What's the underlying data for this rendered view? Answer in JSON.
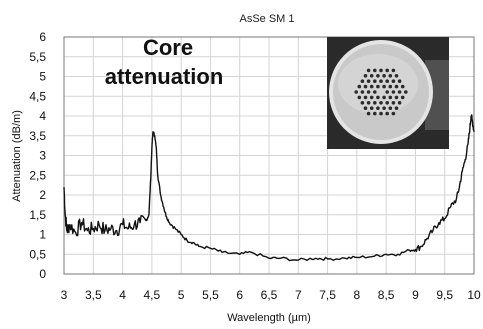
{
  "chart_data": {
    "type": "line",
    "title": "AsSe SM 1",
    "xlabel": "Wavelength (µm)",
    "ylabel": "Attenuation (dB/m)",
    "xlim": [
      3,
      10
    ],
    "ylim": [
      0,
      6
    ],
    "xticks": [
      "3",
      "3,5",
      "4",
      "4,5",
      "5",
      "5,5",
      "6",
      "6,5",
      "7",
      "7,5",
      "8",
      "8,5",
      "9",
      "9,5",
      "10"
    ],
    "yticks": [
      "0",
      "0,5",
      "1",
      "1,5",
      "2",
      "2,5",
      "3",
      "3,5",
      "4",
      "4,5",
      "5",
      "5,5",
      "6"
    ],
    "grid": true,
    "annotation": [
      "Core",
      "attenuation"
    ],
    "inset": "fiber cross-section micrograph (top-right)",
    "series": [
      {
        "x": [
          3.0,
          3.02,
          3.05,
          3.1,
          3.2,
          3.3,
          3.4,
          3.5,
          3.6,
          3.7,
          3.8,
          3.9,
          4.0,
          4.1,
          4.2,
          4.3,
          4.4,
          4.45,
          4.48,
          4.5,
          4.52,
          4.55,
          4.58,
          4.6,
          4.65,
          4.7,
          4.75,
          4.8,
          4.9,
          5.0,
          5.1,
          5.2,
          5.3,
          5.5,
          5.7,
          6.0,
          6.2,
          6.5,
          6.7,
          7.0,
          7.3,
          7.5,
          7.8,
          8.0,
          8.3,
          8.5,
          8.7,
          8.9,
          9.0,
          9.1,
          9.2,
          9.3,
          9.4,
          9.5,
          9.6,
          9.7,
          9.75,
          9.8,
          9.85,
          9.9,
          9.93,
          9.95,
          9.97,
          10.0
        ],
        "y": [
          2.2,
          1.5,
          1.1,
          1.25,
          1.05,
          1.3,
          1.1,
          1.15,
          1.25,
          1.1,
          1.15,
          1.1,
          1.25,
          1.15,
          1.25,
          1.3,
          1.35,
          1.5,
          2.4,
          3.2,
          3.6,
          3.5,
          3.1,
          2.5,
          2.0,
          1.7,
          1.45,
          1.3,
          1.15,
          1.0,
          0.85,
          0.8,
          0.7,
          0.65,
          0.55,
          0.5,
          0.55,
          0.4,
          0.4,
          0.35,
          0.4,
          0.38,
          0.4,
          0.42,
          0.45,
          0.5,
          0.5,
          0.6,
          0.62,
          0.7,
          0.9,
          1.1,
          1.3,
          1.4,
          1.7,
          1.9,
          2.2,
          2.6,
          2.9,
          3.3,
          3.7,
          4.0,
          3.9,
          3.6
        ]
      }
    ]
  }
}
